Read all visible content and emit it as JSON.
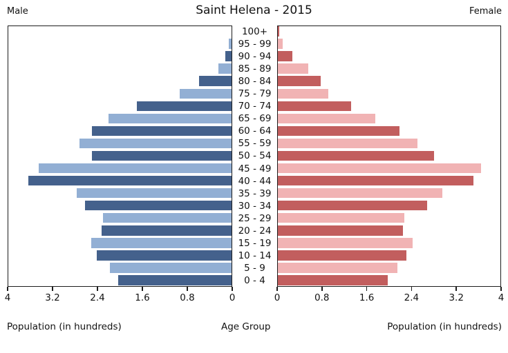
{
  "title": "Saint Helena - 2015",
  "left_header": "Male",
  "right_header": "Female",
  "xlabel_left": "Population (in hundreds)",
  "xlabel_center": "Age Group",
  "xlabel_right": "Population (in hundreds)",
  "colors": {
    "male_dark": "#44618C",
    "male_light": "#92AFD4",
    "female_dark": "#C25E5E",
    "female_light": "#F1B3B4",
    "axis": "#1c1c1c"
  },
  "chart_data": {
    "type": "bar",
    "variant": "population-pyramid",
    "title": "Saint Helena - 2015",
    "center_label": "Age Group",
    "xlabel": "Population (in hundreds)",
    "xlim": [
      0,
      4
    ],
    "xticks": [
      0,
      0.8,
      1.6,
      2.4,
      3.2,
      4
    ],
    "grid": false,
    "categories_top_to_bottom": [
      "100+",
      "95 - 99",
      "90 - 94",
      "85 - 89",
      "80 - 84",
      "75 - 79",
      "70 - 74",
      "65 - 69",
      "60 - 64",
      "55 - 59",
      "50 - 54",
      "45 - 49",
      "40 - 44",
      "35 - 39",
      "30 - 34",
      "25 - 29",
      "20 - 24",
      "15 - 19",
      "10 - 14",
      "5 - 9",
      "0 - 4"
    ],
    "series": [
      {
        "name": "Male",
        "side": "left",
        "values": [
          0.0,
          0.05,
          0.11,
          0.23,
          0.58,
          0.92,
          1.69,
          2.19,
          2.49,
          2.71,
          2.49,
          3.43,
          3.62,
          2.76,
          2.61,
          2.29,
          2.31,
          2.5,
          2.4,
          2.17,
          2.02
        ]
      },
      {
        "name": "Female",
        "side": "right",
        "values": [
          0.03,
          0.09,
          0.26,
          0.54,
          0.77,
          0.9,
          1.31,
          1.74,
          2.17,
          2.49,
          2.79,
          3.63,
          3.49,
          2.94,
          2.67,
          2.26,
          2.24,
          2.41,
          2.3,
          2.13,
          1.96
        ]
      }
    ]
  }
}
